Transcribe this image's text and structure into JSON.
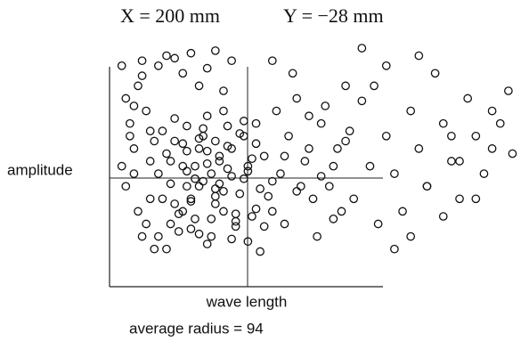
{
  "chart_data": {
    "type": "scatter",
    "annotations": [
      "X = 200 mm",
      "Y = −28 mm",
      "average radius = 94"
    ],
    "x_label": "wave length",
    "y_label": "amplitude",
    "xlim": [
      0,
      100
    ],
    "ylim": [
      0,
      100
    ],
    "color": "#111111",
    "series": [
      {
        "x": [
          12,
          15,
          18,
          20,
          22,
          25,
          27,
          30,
          33,
          36,
          13,
          16,
          19,
          21,
          23,
          26,
          28,
          31,
          34,
          37,
          14,
          17,
          19,
          22,
          24,
          26,
          29,
          32,
          35,
          38,
          12,
          15,
          18,
          21,
          23,
          25,
          28,
          30,
          33,
          36,
          13,
          16,
          20,
          22,
          24,
          27,
          29,
          31,
          34,
          37,
          14,
          17,
          19,
          21,
          24,
          26,
          28,
          32,
          35,
          38,
          15,
          18,
          20,
          23,
          25,
          27,
          30,
          33,
          36,
          39,
          11,
          16,
          19,
          22,
          24,
          26,
          29,
          31,
          34,
          40,
          3,
          4,
          5,
          6,
          7,
          8,
          9,
          10,
          4,
          6,
          8,
          10,
          5,
          7,
          9,
          11,
          3,
          6,
          8,
          10,
          12,
          14,
          16,
          18,
          20,
          22,
          24,
          26,
          28,
          30,
          40,
          42,
          44,
          46,
          48,
          50,
          52,
          54,
          56,
          58,
          41,
          43,
          45,
          47,
          49,
          51,
          53,
          55,
          57,
          59,
          40,
          43,
          46,
          49,
          52,
          55,
          58,
          60,
          62,
          64,
          62,
          65,
          68,
          70,
          72,
          74,
          76,
          78,
          80,
          82,
          84,
          86,
          88,
          90,
          92,
          94,
          96,
          98,
          66,
          70,
          74,
          78,
          82,
          86,
          90,
          94,
          68,
          76,
          84,
          99
        ],
        "values": [
          20,
          25,
          30,
          35,
          40,
          45,
          50,
          55,
          60,
          65,
          62,
          58,
          54,
          48,
          42,
          36,
          30,
          24,
          18,
          14,
          15,
          22,
          40,
          55,
          68,
          33,
          47,
          61,
          28,
          52,
          45,
          50,
          57,
          27,
          63,
          20,
          38,
          44,
          66,
          31,
          35,
          67,
          23,
          59,
          49,
          41,
          56,
          26,
          46,
          39,
          53,
          29,
          64,
          43,
          17,
          58,
          70,
          37,
          51,
          24,
          41,
          48,
          34,
          60,
          27,
          52,
          19,
          43,
          57,
          36,
          58,
          33,
          46,
          21,
          54,
          39,
          64,
          29,
          48,
          42,
          88,
          75,
          60,
          45,
          30,
          90,
          70,
          50,
          40,
          55,
          20,
          35,
          65,
          80,
          25,
          15,
          48,
          72,
          84,
          62,
          88,
          92,
          91,
          85,
          93,
          80,
          87,
          94,
          78,
          90,
          30,
          45,
          60,
          75,
          50,
          35,
          65,
          40,
          55,
          80,
          70,
          25,
          85,
          40,
          55,
          20,
          72,
          48,
          30,
          62,
          90,
          52,
          38,
          68,
          44,
          27,
          58,
          35,
          74,
          48,
          95,
          80,
          60,
          45,
          30,
          70,
          55,
          40,
          85,
          65,
          50,
          35,
          75,
          60,
          45,
          55,
          65,
          78,
          25,
          15,
          20,
          40,
          28,
          50,
          35,
          70,
          88,
          92,
          60,
          53
        ]
      }
    ]
  }
}
